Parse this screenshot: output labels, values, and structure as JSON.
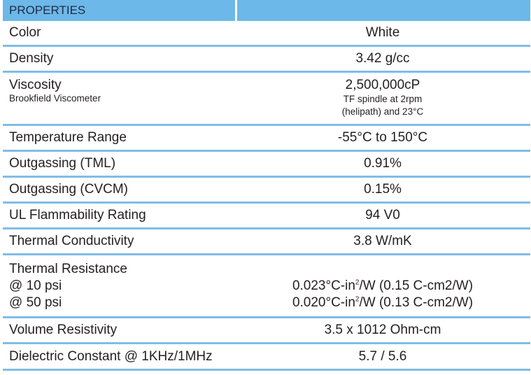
{
  "header": {
    "label": "PROPERTIES"
  },
  "rows": [
    {
      "property": "Color",
      "value": "White"
    },
    {
      "property": "Density",
      "value": "3.42 g/cc"
    },
    {
      "property": "Viscosity",
      "note": "Brookfield Viscometer",
      "value": "2,500,000cP",
      "value_note_1": "TF spindle at 2rpm",
      "value_note_2": "(helipath) and 23°C"
    },
    {
      "property": "Temperature Range",
      "value": "-55°C to 150°C"
    },
    {
      "property": "Outgassing (TML)",
      "value": "0.91%"
    },
    {
      "property": "Outgassing (CVCM)",
      "value": "0.15%"
    },
    {
      "property": "UL Flammability Rating",
      "value": "94 V0"
    },
    {
      "property": "Thermal Conductivity",
      "value": "3.8 W/mK"
    },
    {
      "property": "Thermal Resistance",
      "sub1": "@ 10 psi",
      "sub2": "@ 50 psi",
      "v1a": "0.023°C-in",
      "v1b": "/W (0.15 C-cm2/W)",
      "v2a": "0.020°C-in",
      "v2b": "/W (0.13 C-cm2/W)",
      "sup": "2"
    },
    {
      "property": "Volume Resistivity",
      "value": "3.5 x 1012 Ohm-cm"
    },
    {
      "property": "Dielectric Constant @ 1KHz/1MHz",
      "value": "5.7 / 5.6"
    }
  ],
  "colors": {
    "header_bg": "#6cb8e8",
    "divider": "#7fbde6"
  }
}
